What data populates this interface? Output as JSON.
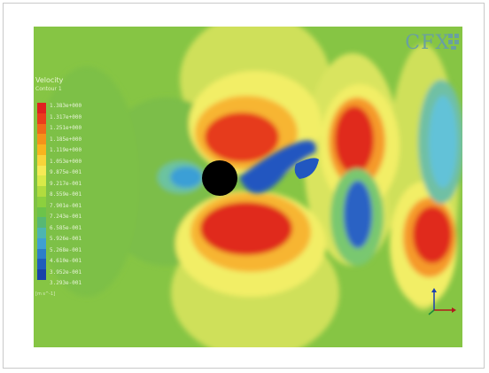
{
  "logo": {
    "text": "CFX",
    "brand_color": "#6aa0a0"
  },
  "legend": {
    "title": "Velocity",
    "subtitle": "Contour 1",
    "labels": [
      "1.383e+000",
      "1.317e+000",
      "1.251e+000",
      "1.185e+000",
      "1.119e+000",
      "1.053e+000",
      "9.875e-001",
      "9.217e-001",
      "8.559e-001",
      "7.901e-001",
      "7.243e-001",
      "6.585e-001",
      "5.926e-001",
      "5.268e-001",
      "4.610e-001",
      "3.952e-001",
      "3.293e-001"
    ],
    "footer": "[m s^-1]",
    "colors": [
      "#e02020",
      "#ea3d1c",
      "#f06a1a",
      "#f5921a",
      "#f8b41e",
      "#f8d43a",
      "#f5ea55",
      "#d8ea48",
      "#b1dc3e",
      "#8cd03e",
      "#6cc34a",
      "#57b874",
      "#4db5b0",
      "#3fa0d2",
      "#2d7ec8",
      "#1f5dbb",
      "#1842a8"
    ]
  },
  "field": {
    "background_color": "#86c544",
    "cylinder_color": "#000000"
  }
}
